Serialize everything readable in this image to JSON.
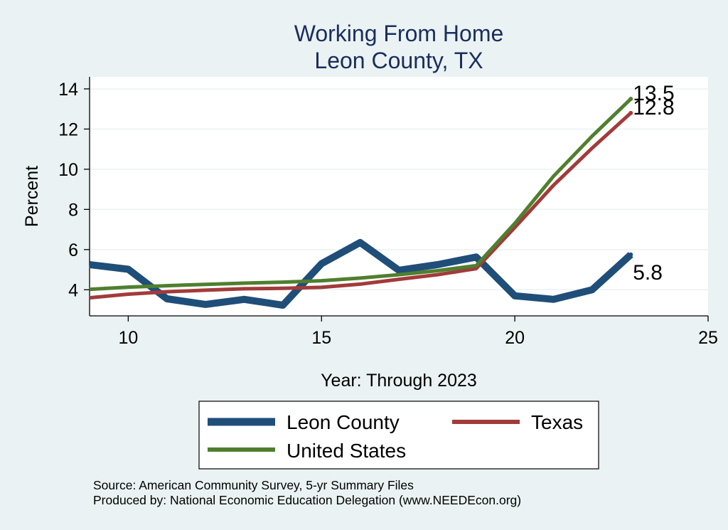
{
  "chart_data": {
    "type": "line",
    "title": [
      "Working From Home",
      "Leon County, TX"
    ],
    "xlabel": "Year: Through 2023",
    "ylabel": "Percent",
    "xlim": [
      9,
      25
    ],
    "ylim": [
      2.7,
      14.6
    ],
    "xticks": [
      10,
      15,
      20,
      25
    ],
    "yticks": [
      4,
      6,
      8,
      10,
      12,
      14
    ],
    "grid": "horizontal",
    "x": [
      9,
      10,
      11,
      12,
      13,
      14,
      15,
      16,
      17,
      18,
      19,
      20,
      21,
      22,
      23
    ],
    "series": [
      {
        "name": "Leon County",
        "color": "#1f4e79",
        "values": [
          5.25,
          5.02,
          3.55,
          3.27,
          3.52,
          3.23,
          5.3,
          6.35,
          4.97,
          5.25,
          5.63,
          3.7,
          3.52,
          4.0,
          5.75
        ],
        "end_label": "5.8"
      },
      {
        "name": "Texas",
        "color": "#a23b3a",
        "values": [
          3.6,
          3.78,
          3.9,
          3.98,
          4.05,
          4.07,
          4.12,
          4.28,
          4.52,
          4.75,
          5.05,
          7.1,
          9.2,
          11.05,
          12.8
        ],
        "end_label": "12.8"
      },
      {
        "name": "United States",
        "color": "#4f7f2e",
        "values": [
          4.02,
          4.13,
          4.2,
          4.27,
          4.33,
          4.38,
          4.45,
          4.58,
          4.75,
          4.95,
          5.2,
          7.3,
          9.65,
          11.65,
          13.5
        ],
        "end_label": "13.5"
      }
    ],
    "legend": {
      "placement": "bottom",
      "items": [
        "Leon County",
        "Texas",
        "United States"
      ]
    },
    "notes": [
      "Source: American Community Survey, 5-yr Summary Files",
      "Produced by: National Economic Education Delegation (www.NEEDEcon.org)"
    ]
  }
}
